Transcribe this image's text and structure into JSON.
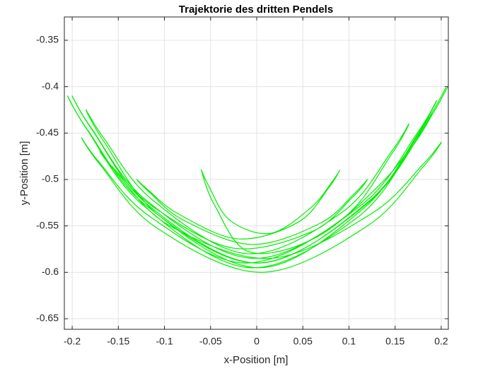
{
  "chart_data": {
    "type": "line",
    "title": "Trajektorie des dritten Pendels",
    "xlabel": "x-Position [m]",
    "ylabel": "y-Position [m]",
    "xlim": [
      -0.2085,
      0.2077
    ],
    "ylim": [
      -0.6614,
      -0.3249
    ],
    "xticks": [
      -0.2,
      -0.15,
      -0.1,
      -0.05,
      0,
      0.05,
      0.1,
      0.15,
      0.2
    ],
    "yticks": [
      -0.65,
      -0.6,
      -0.55,
      -0.5,
      -0.45,
      -0.4,
      -0.35
    ],
    "grid": true,
    "series": [
      {
        "color": "#00ee00",
        "x": [
          0.205,
          0.183,
          0.122,
          0.003,
          -0.116,
          -0.178,
          -0.2,
          -0.179,
          -0.119,
          -0.003,
          0.114,
          0.174,
          0.195,
          0.174,
          0.117,
          0.005,
          -0.107,
          -0.165,
          -0.185,
          -0.166,
          -0.113,
          -0.01,
          0.093,
          0.146,
          0.165,
          0.146,
          0.092,
          -0.013,
          -0.117,
          -0.171,
          -0.19,
          -0.169,
          -0.11,
          0.005,
          0.12,
          0.179,
          0.2,
          0.18,
          0.124,
          0.015,
          -0.094,
          -0.15,
          -0.17,
          -0.154,
          -0.11,
          -0.025,
          0.06,
          0.104,
          0.12,
          0.106,
          0.069,
          -0.005,
          -0.079,
          -0.116,
          -0.13,
          -0.118,
          -0.085,
          -0.02,
          0.045,
          0.078,
          0.09,
          0.082,
          0.059,
          0.015,
          -0.029,
          -0.052,
          -0.06,
          -0.046,
          -0.008,
          0.065,
          0.138,
          0.176,
          0.19,
          0.169,
          0.109,
          -0.008,
          -0.124,
          -0.184,
          -0.205,
          -0.183,
          -0.12,
          0.001,
          0.122,
          0.185,
          0.207
        ],
        "values": [
          -0.401,
          -0.439,
          -0.523,
          -0.59,
          -0.529,
          -0.447,
          -0.41,
          -0.445,
          -0.523,
          -0.585,
          -0.527,
          -0.45,
          -0.415,
          -0.452,
          -0.53,
          -0.595,
          -0.538,
          -0.46,
          -0.425,
          -0.455,
          -0.522,
          -0.58,
          -0.535,
          -0.47,
          -0.44,
          -0.473,
          -0.543,
          -0.59,
          -0.539,
          -0.481,
          -0.455,
          -0.485,
          -0.551,
          -0.6,
          -0.55,
          -0.488,
          -0.46,
          -0.484,
          -0.537,
          -0.585,
          -0.55,
          -0.495,
          -0.47,
          -0.489,
          -0.531,
          -0.574,
          -0.556,
          -0.519,
          -0.5,
          -0.515,
          -0.547,
          -0.57,
          -0.544,
          -0.514,
          -0.5,
          -0.511,
          -0.537,
          -0.564,
          -0.546,
          -0.509,
          -0.49,
          -0.502,
          -0.53,
          -0.558,
          -0.544,
          -0.507,
          -0.49,
          -0.527,
          -0.578,
          -0.562,
          -0.501,
          -0.451,
          -0.43,
          -0.464,
          -0.541,
          -0.595,
          -0.527,
          -0.446,
          -0.41,
          -0.447,
          -0.528,
          -0.59,
          -0.524,
          -0.438,
          -0.4
        ]
      }
    ]
  }
}
